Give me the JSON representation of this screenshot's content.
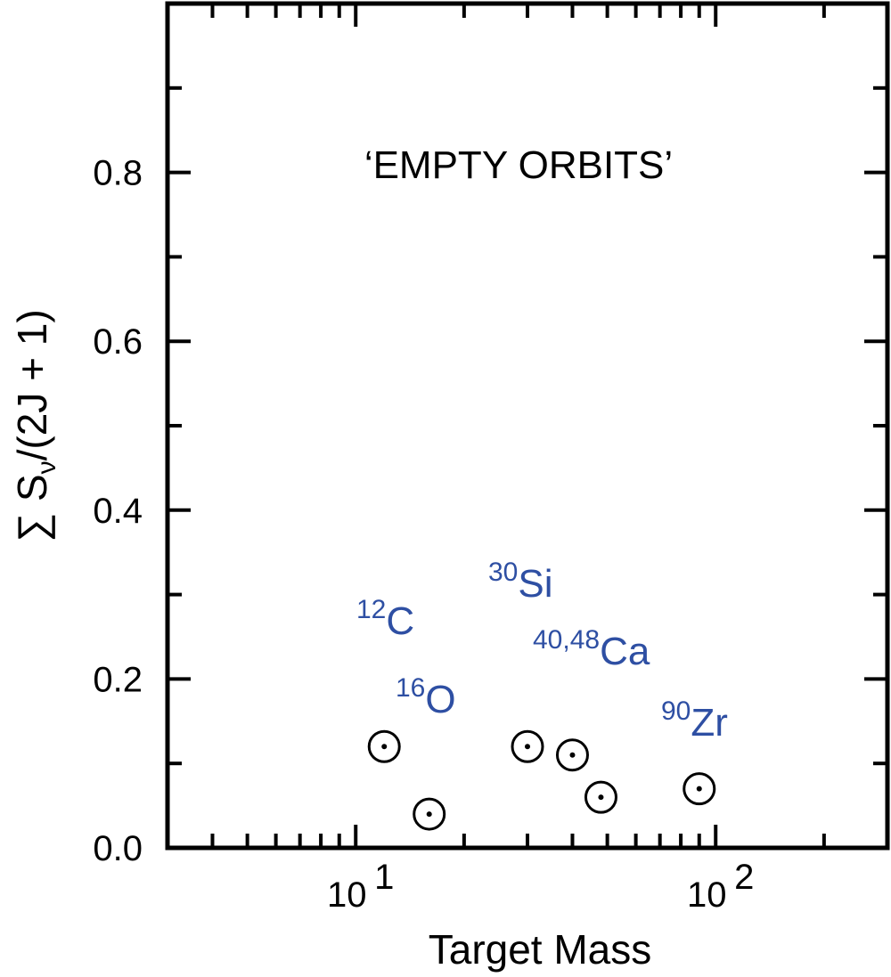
{
  "chart_data": {
    "type": "scatter",
    "xlabel": "Target Mass",
    "ylabel": {
      "prefix": "∑ S",
      "subscript": "ν",
      "suffix": "/(2J + 1)"
    },
    "xscale": "log",
    "xlim": [
      3,
      300
    ],
    "ylim": [
      0,
      1.0
    ],
    "x_tick_labels": [
      {
        "value": 10,
        "base": "10",
        "exp": "1"
      },
      {
        "value": 100,
        "base": "10",
        "exp": "2"
      }
    ],
    "y_tick_labels": [
      "0.0",
      "0.2",
      "0.4",
      "0.6",
      "0.8"
    ],
    "y_tick_values": [
      0.0,
      0.2,
      0.4,
      0.6,
      0.8
    ],
    "annotation": "‘EMPTY ORBITS’",
    "marker_style": "circled-dot",
    "points": [
      {
        "x": 12,
        "y": 0.12
      },
      {
        "x": 16,
        "y": 0.04
      },
      {
        "x": 30,
        "y": 0.12
      },
      {
        "x": 40,
        "y": 0.11
      },
      {
        "x": 48,
        "y": 0.06
      },
      {
        "x": 90,
        "y": 0.07
      }
    ],
    "nuclide_labels": [
      {
        "mass": "12",
        "symbol": "C"
      },
      {
        "mass": "16",
        "symbol": "O"
      },
      {
        "mass": "30",
        "symbol": "Si"
      },
      {
        "mass": "40,48",
        "symbol": "Ca"
      },
      {
        "mass": "90",
        "symbol": "Zr"
      }
    ],
    "colors": {
      "axes": "#000000",
      "markers": "#000000",
      "nuclide_labels": "#2e4fa3"
    },
    "grid": false
  }
}
